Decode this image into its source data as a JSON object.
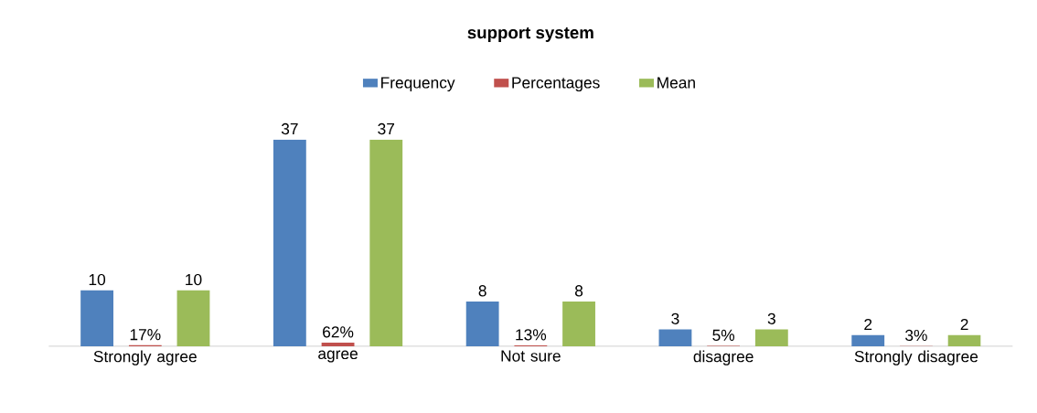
{
  "chart_data": {
    "type": "bar",
    "title": "support system",
    "categories": [
      "Strongly agree",
      "agree",
      "Not sure",
      "disagree",
      "Strongly disagree"
    ],
    "series": [
      {
        "name": "Frequency",
        "color": "#4f81bd",
        "values": [
          10,
          37,
          8,
          3,
          2
        ],
        "value_labels": [
          "10",
          "37",
          "8",
          "3",
          "2"
        ]
      },
      {
        "name": "Percentages",
        "color": "#c0504d",
        "values": [
          0.17,
          0.62,
          0.13,
          0.05,
          0.03
        ],
        "value_labels": [
          "17%",
          "62%",
          "13%",
          "5%",
          "3%"
        ]
      },
      {
        "name": "Mean",
        "color": "#9bbb59",
        "values": [
          10,
          37,
          8,
          3,
          2
        ],
        "value_labels": [
          "10",
          "37",
          "8",
          "3",
          "2"
        ]
      }
    ],
    "legend": "top"
  }
}
